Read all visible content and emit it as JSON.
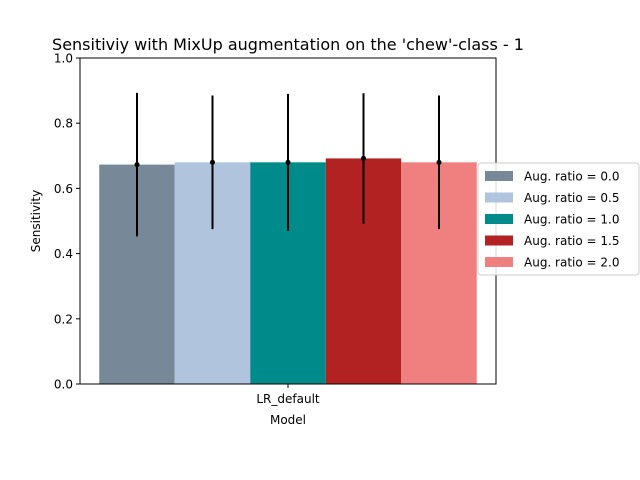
{
  "chart_data": {
    "type": "bar",
    "title": "Sensitiviy with MixUp augmentation on the 'chew'-class - 1",
    "xlabel": "Model",
    "ylabel": "Sensitivity",
    "categories": [
      "LR_default"
    ],
    "ylim": [
      0,
      1.0
    ],
    "yticks": [
      "0.0",
      "0.2",
      "0.4",
      "0.6",
      "0.8",
      "1.0"
    ],
    "grid": false,
    "legend_position": "right",
    "series": [
      {
        "name": "Aug. ratio = 0.0",
        "color": "#778899",
        "values": [
          0.673
        ],
        "error": [
          0.22
        ]
      },
      {
        "name": "Aug. ratio = 0.5",
        "color": "#b0c4de",
        "values": [
          0.68
        ],
        "error": [
          0.205
        ]
      },
      {
        "name": "Aug. ratio = 1.0",
        "color": "#008b8b",
        "values": [
          0.68
        ],
        "error": [
          0.21
        ]
      },
      {
        "name": "Aug. ratio = 1.5",
        "color": "#b22222",
        "values": [
          0.692
        ],
        "error": [
          0.2
        ]
      },
      {
        "name": "Aug. ratio = 2.0",
        "color": "#f08080",
        "values": [
          0.68
        ],
        "error": [
          0.205
        ]
      }
    ]
  }
}
